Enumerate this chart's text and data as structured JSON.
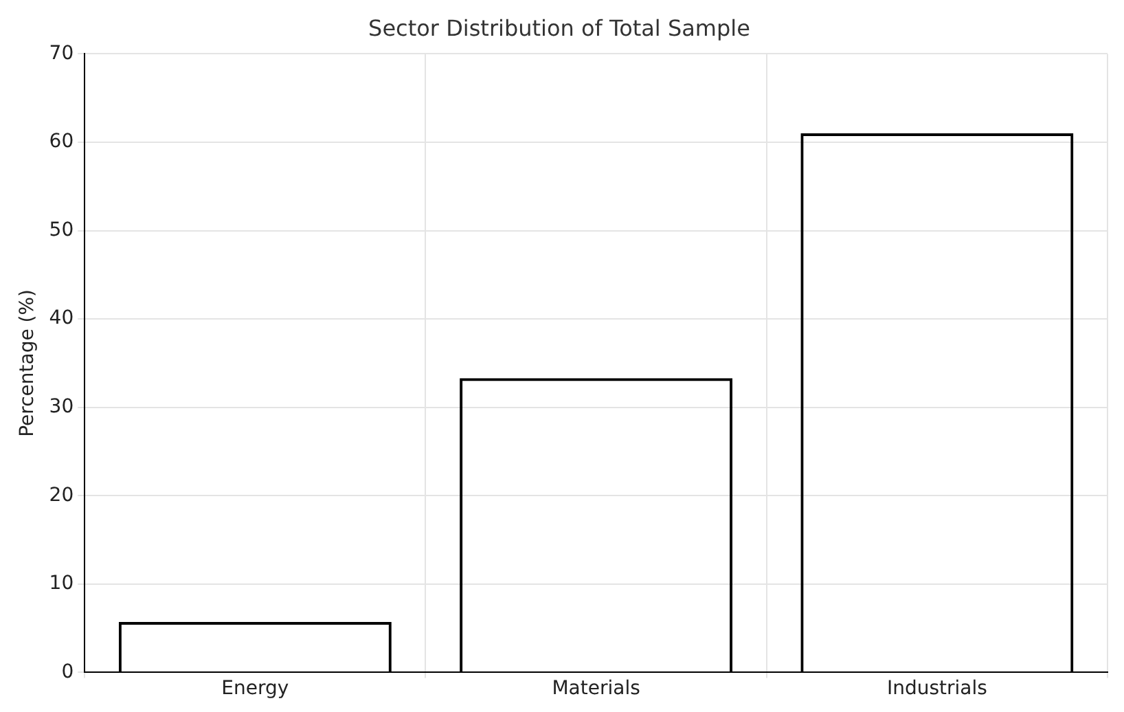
{
  "chart_data": {
    "type": "bar",
    "title": "Sector Distribution of Total Sample",
    "ylabel": "Percentage (%)",
    "categories": [
      "Energy",
      "Materials",
      "Industrials"
    ],
    "values": [
      5.7,
      33.3,
      61.0
    ],
    "color": "#000000",
    "ylim": [
      0,
      70
    ],
    "yticks": [
      0,
      10,
      20,
      30,
      40,
      50,
      60,
      70
    ],
    "grid": true
  }
}
